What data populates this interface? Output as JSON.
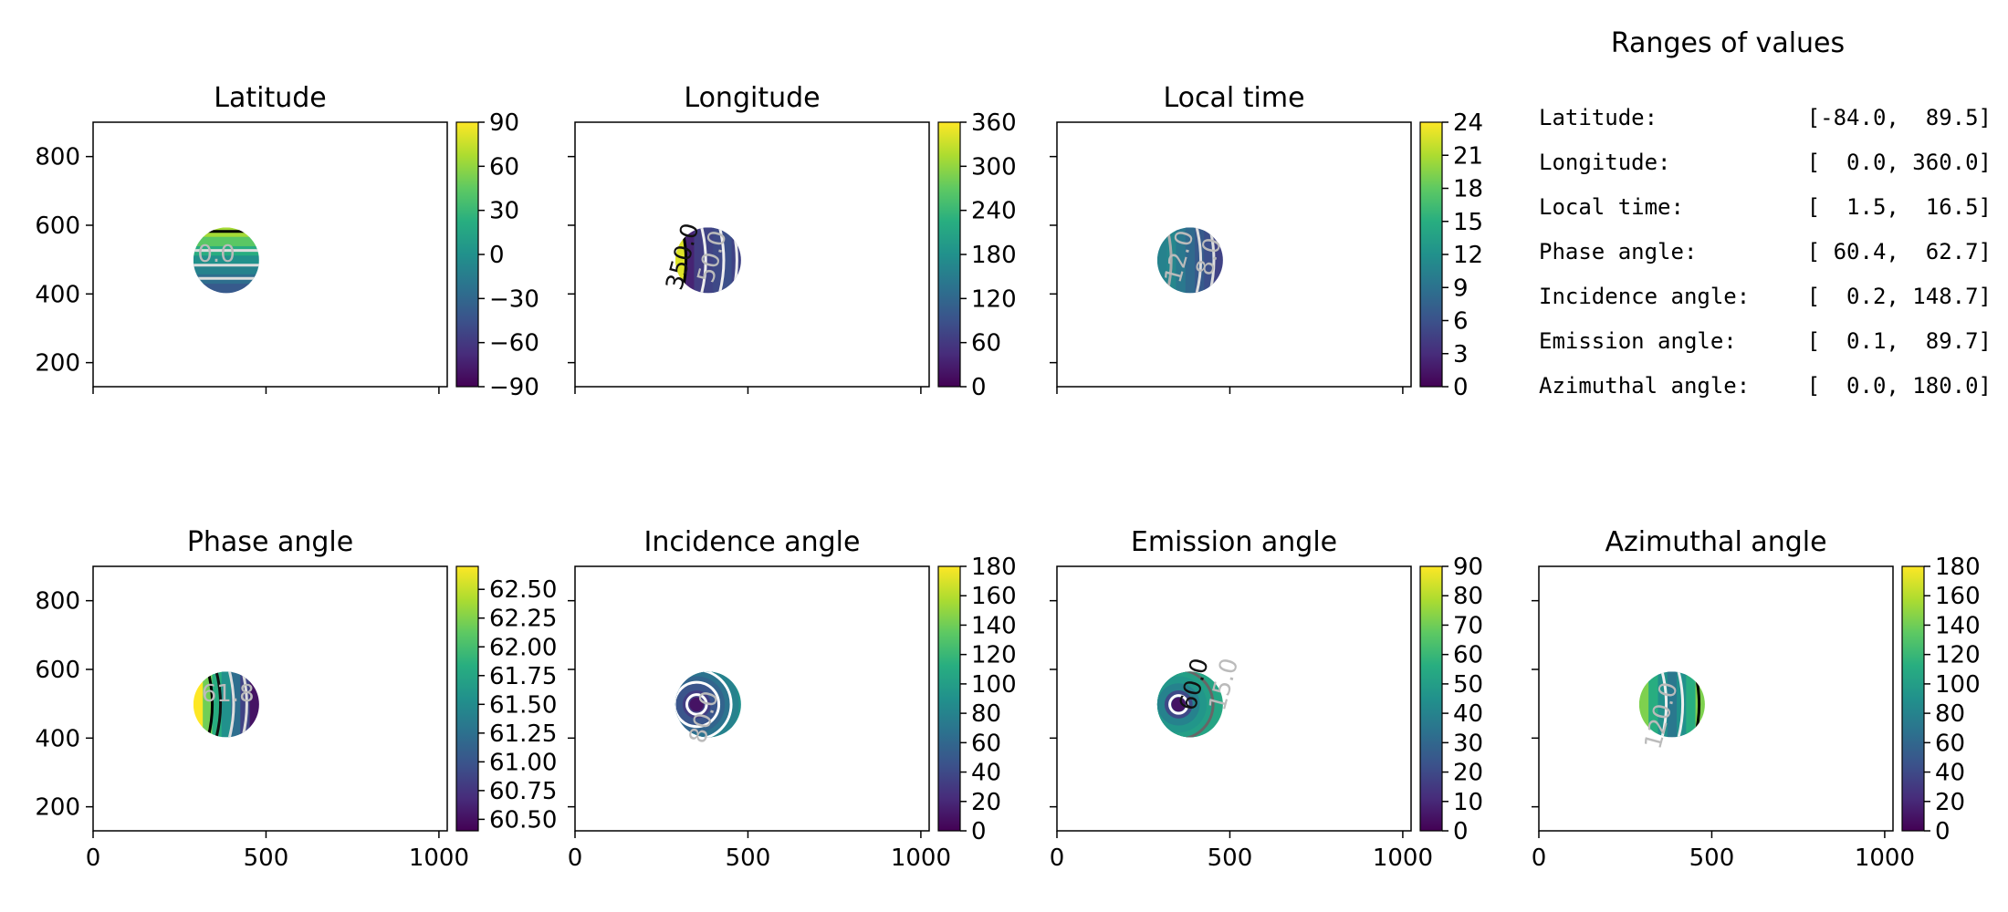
{
  "chart_data": [
    {
      "type": "heatmap",
      "title": "Latitude",
      "x_ticks": [],
      "y_ticks": [
        {
          "v": 200,
          "l": "200"
        },
        {
          "v": 400,
          "l": "400"
        },
        {
          "v": 600,
          "l": "600"
        },
        {
          "v": 800,
          "l": "800"
        }
      ],
      "xlim": [
        0,
        1024
      ],
      "ylim": [
        130,
        900
      ],
      "disk": {
        "cx": 385,
        "cy": 498,
        "r": 95
      },
      "colorbar": {
        "range": [
          -90,
          90
        ],
        "ticks": [
          {
            "v": 90,
            "l": "90"
          },
          {
            "v": 60,
            "l": "60"
          },
          {
            "v": 30,
            "l": "30"
          },
          {
            "v": 0,
            "l": "0"
          },
          {
            "v": -30,
            "l": "−30"
          },
          {
            "v": -60,
            "l": "−60"
          },
          {
            "v": -90,
            "l": "−90"
          }
        ]
      },
      "contour_labels": [
        "0.0"
      ]
    },
    {
      "type": "heatmap",
      "title": "Longitude",
      "x_ticks": [],
      "y_ticks": [],
      "xlim": [
        0,
        1024
      ],
      "ylim": [
        130,
        900
      ],
      "disk": {
        "cx": 385,
        "cy": 498,
        "r": 95
      },
      "colorbar": {
        "range": [
          0,
          360
        ],
        "ticks": [
          {
            "v": 360,
            "l": "360"
          },
          {
            "v": 300,
            "l": "300"
          },
          {
            "v": 240,
            "l": "240"
          },
          {
            "v": 180,
            "l": "180"
          },
          {
            "v": 120,
            "l": "120"
          },
          {
            "v": 60,
            "l": "60"
          },
          {
            "v": 0,
            "l": "0"
          }
        ]
      },
      "contour_labels": [
        "350.0",
        "50.0"
      ]
    },
    {
      "type": "heatmap",
      "title": "Local time",
      "x_ticks": [],
      "y_ticks": [],
      "xlim": [
        0,
        1024
      ],
      "ylim": [
        130,
        900
      ],
      "disk": {
        "cx": 385,
        "cy": 498,
        "r": 95
      },
      "colorbar": {
        "range": [
          0,
          24
        ],
        "ticks": [
          {
            "v": 24,
            "l": "24"
          },
          {
            "v": 21,
            "l": "21"
          },
          {
            "v": 18,
            "l": "18"
          },
          {
            "v": 15,
            "l": "15"
          },
          {
            "v": 12,
            "l": "12"
          },
          {
            "v": 9,
            "l": "9"
          },
          {
            "v": 6,
            "l": "6"
          },
          {
            "v": 3,
            "l": "3"
          },
          {
            "v": 0,
            "l": "0"
          }
        ]
      },
      "contour_labels": [
        "12.0",
        "8.0"
      ]
    },
    {
      "type": "heatmap",
      "title": "Phase angle",
      "x_ticks": [
        {
          "v": 0,
          "l": "0"
        },
        {
          "v": 500,
          "l": "500"
        },
        {
          "v": 1000,
          "l": "1000"
        }
      ],
      "y_ticks": [
        {
          "v": 200,
          "l": "200"
        },
        {
          "v": 400,
          "l": "400"
        },
        {
          "v": 600,
          "l": "600"
        },
        {
          "v": 800,
          "l": "800"
        }
      ],
      "xlim": [
        0,
        1024
      ],
      "ylim": [
        130,
        900
      ],
      "disk": {
        "cx": 385,
        "cy": 498,
        "r": 95
      },
      "colorbar": {
        "range": [
          60.4,
          62.7
        ],
        "ticks": [
          {
            "v": 62.5,
            "l": "62.50"
          },
          {
            "v": 62.25,
            "l": "62.25"
          },
          {
            "v": 62.0,
            "l": "62.00"
          },
          {
            "v": 61.75,
            "l": "61.75"
          },
          {
            "v": 61.5,
            "l": "61.50"
          },
          {
            "v": 61.25,
            "l": "61.25"
          },
          {
            "v": 61.0,
            "l": "61.00"
          },
          {
            "v": 60.75,
            "l": "60.75"
          },
          {
            "v": 60.5,
            "l": "60.50"
          }
        ]
      },
      "contour_labels": [
        "61.8"
      ]
    },
    {
      "type": "heatmap",
      "title": "Incidence angle",
      "x_ticks": [
        {
          "v": 0,
          "l": "0"
        },
        {
          "v": 500,
          "l": "500"
        },
        {
          "v": 1000,
          "l": "1000"
        }
      ],
      "y_ticks": [],
      "xlim": [
        0,
        1024
      ],
      "ylim": [
        130,
        900
      ],
      "disk": {
        "cx": 385,
        "cy": 498,
        "r": 95
      },
      "colorbar": {
        "range": [
          0,
          180
        ],
        "ticks": [
          {
            "v": 180,
            "l": "180"
          },
          {
            "v": 160,
            "l": "160"
          },
          {
            "v": 140,
            "l": "140"
          },
          {
            "v": 120,
            "l": "120"
          },
          {
            "v": 100,
            "l": "100"
          },
          {
            "v": 80,
            "l": "80"
          },
          {
            "v": 60,
            "l": "60"
          },
          {
            "v": 40,
            "l": "40"
          },
          {
            "v": 20,
            "l": "20"
          },
          {
            "v": 0,
            "l": "0"
          }
        ]
      },
      "contour_labels": [
        "80.0"
      ]
    },
    {
      "type": "heatmap",
      "title": "Emission angle",
      "x_ticks": [
        {
          "v": 0,
          "l": "0"
        },
        {
          "v": 500,
          "l": "500"
        },
        {
          "v": 1000,
          "l": "1000"
        }
      ],
      "y_ticks": [],
      "xlim": [
        0,
        1024
      ],
      "ylim": [
        130,
        900
      ],
      "disk": {
        "cx": 385,
        "cy": 498,
        "r": 95
      },
      "colorbar": {
        "range": [
          0,
          90
        ],
        "ticks": [
          {
            "v": 90,
            "l": "90"
          },
          {
            "v": 80,
            "l": "80"
          },
          {
            "v": 70,
            "l": "70"
          },
          {
            "v": 60,
            "l": "60"
          },
          {
            "v": 50,
            "l": "50"
          },
          {
            "v": 40,
            "l": "40"
          },
          {
            "v": 30,
            "l": "30"
          },
          {
            "v": 20,
            "l": "20"
          },
          {
            "v": 10,
            "l": "10"
          },
          {
            "v": 0,
            "l": "0"
          }
        ]
      },
      "contour_labels": [
        "60.0",
        "15.0"
      ]
    },
    {
      "type": "heatmap",
      "title": "Azimuthal angle",
      "x_ticks": [
        {
          "v": 0,
          "l": "0"
        },
        {
          "v": 500,
          "l": "500"
        },
        {
          "v": 1000,
          "l": "1000"
        }
      ],
      "y_ticks": [],
      "xlim": [
        0,
        1024
      ],
      "ylim": [
        130,
        900
      ],
      "disk": {
        "cx": 385,
        "cy": 498,
        "r": 95
      },
      "colorbar": {
        "range": [
          0,
          180
        ],
        "ticks": [
          {
            "v": 180,
            "l": "180"
          },
          {
            "v": 160,
            "l": "160"
          },
          {
            "v": 140,
            "l": "140"
          },
          {
            "v": 120,
            "l": "120"
          },
          {
            "v": 100,
            "l": "100"
          },
          {
            "v": 80,
            "l": "80"
          },
          {
            "v": 60,
            "l": "60"
          },
          {
            "v": 40,
            "l": "40"
          },
          {
            "v": 20,
            "l": "20"
          },
          {
            "v": 0,
            "l": "0"
          }
        ]
      },
      "contour_labels": [
        "120.0"
      ]
    }
  ],
  "ranges_panel": {
    "title": "Ranges of values",
    "rows": [
      {
        "name": "Latitude:",
        "range": "[-84.0,  89.5]"
      },
      {
        "name": "Longitude:",
        "range": "[  0.0, 360.0]"
      },
      {
        "name": "Local time:",
        "range": "[  1.5,  16.5]"
      },
      {
        "name": "Phase angle:",
        "range": "[ 60.4,  62.7]"
      },
      {
        "name": "Incidence angle:",
        "range": "[  0.2, 148.7]"
      },
      {
        "name": "Emission angle:",
        "range": "[  0.1,  89.7]"
      },
      {
        "name": "Azimuthal angle:",
        "range": "[  0.0, 180.0]"
      }
    ]
  },
  "colormap": "viridis"
}
